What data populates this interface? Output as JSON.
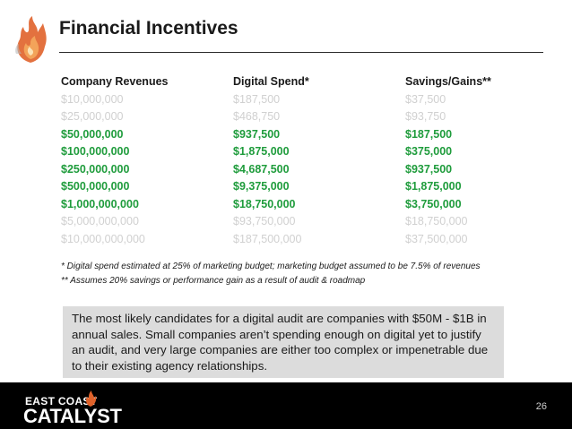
{
  "slide": {
    "title": "Financial Incentives",
    "page_number": "26"
  },
  "table": {
    "headers": [
      "Company Revenues",
      "Digital Spend*",
      "Savings/Gains**"
    ],
    "rows": [
      {
        "style": "muted",
        "cells": [
          "$10,000,000",
          "$187,500",
          "$37,500"
        ]
      },
      {
        "style": "muted",
        "cells": [
          "$25,000,000",
          "$468,750",
          "$93,750"
        ]
      },
      {
        "style": "highlight",
        "cells": [
          "$50,000,000",
          "$937,500",
          "$187,500"
        ]
      },
      {
        "style": "highlight",
        "cells": [
          "$100,000,000",
          "$1,875,000",
          "$375,000"
        ]
      },
      {
        "style": "highlight",
        "cells": [
          "$250,000,000",
          "$4,687,500",
          "$937,500"
        ]
      },
      {
        "style": "highlight",
        "cells": [
          "$500,000,000",
          "$9,375,000",
          "$1,875,000"
        ]
      },
      {
        "style": "highlight",
        "cells": [
          "$1,000,000,000",
          "$18,750,000",
          "$3,750,000"
        ]
      },
      {
        "style": "muted",
        "cells": [
          "$5,000,000,000",
          "$93,750,000",
          "$18,750,000"
        ]
      },
      {
        "style": "muted",
        "cells": [
          "$10,000,000,000",
          "$187,500,000",
          "$37,500,000"
        ]
      }
    ]
  },
  "footnotes": {
    "digital_spend": "* Digital spend estimated at 25% of marketing budget; marketing budget assumed to be 7.5% of revenues",
    "savings": "** Assumes 20% savings or performance gain as a result of audit & roadmap"
  },
  "callout": {
    "text": "The most likely candidates for a digital audit are companies with $50M - $1B in annual sales. Small companies aren’t spending enough on digital yet to justify an audit, and very large companies are either too complex or impenetrable due to their existing agency relationships."
  },
  "brand": {
    "line1": "EAST COAST",
    "line2": "CATALYST"
  },
  "colors": {
    "highlight": "#1f9c3c",
    "muted": "#d0d0d0",
    "callout_bg": "#dcdcdc",
    "footer_bg": "#000000",
    "flame": "#e0622a"
  },
  "icons": {
    "header_logo": "flame-logo-icon",
    "footer_logo": "flame-icon"
  }
}
